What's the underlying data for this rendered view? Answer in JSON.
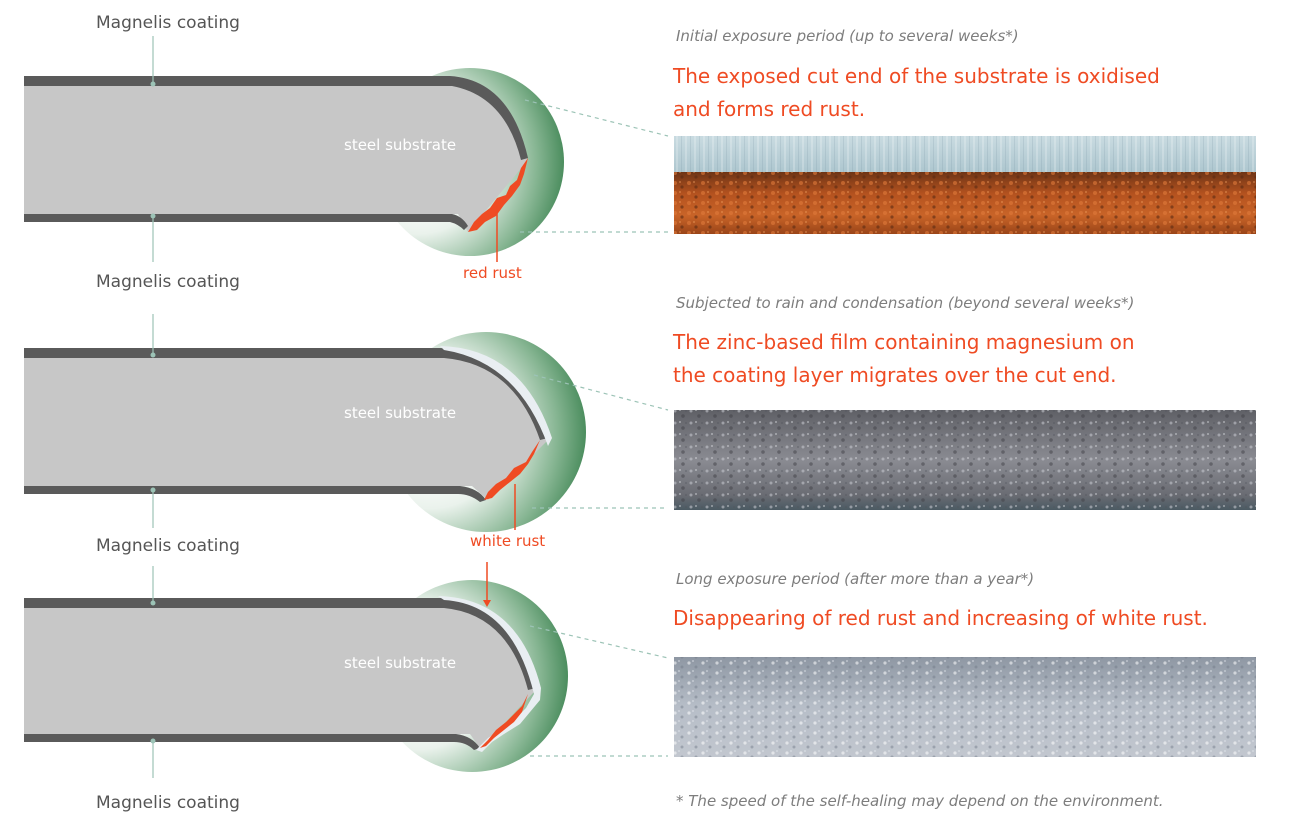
{
  "labels": {
    "coating": "Magnelis coating",
    "substrate": "steel substrate",
    "red_rust": "red rust",
    "white_rust": "white rust"
  },
  "stages": [
    {
      "caption": "Initial exposure period (up to several weeks*)",
      "headline_line1": "The exposed cut end of the substrate is oxidised",
      "headline_line2": "and forms red rust.",
      "photo": "red-rust-photo"
    },
    {
      "caption": "Subjected to rain and condensation (beyond several weeks*)",
      "headline_line1": "The zinc-based film containing magnesium on",
      "headline_line2": "the coating layer migrates over the cut end.",
      "photo": "migrating-film-photo"
    },
    {
      "caption": "Long exposure period (after more than a year*)",
      "headline_line1": "Disappearing of red rust and increasing of white rust.",
      "headline_line2": "",
      "photo": "white-rust-photo"
    }
  ],
  "footnote": "* The speed of the self-healing may depend on the environment.",
  "colors": {
    "accent": "#ef4b23",
    "steel": "#c7c7c7",
    "coating": "#5a5a5a",
    "circle": "#3c8a55",
    "caption_text": "#7d7d7d"
  }
}
